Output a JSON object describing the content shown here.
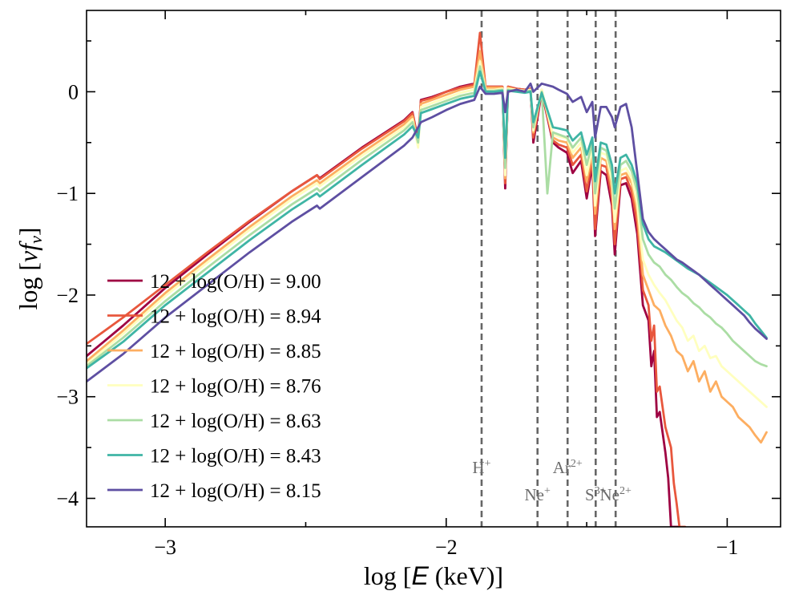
{
  "chart_data": {
    "type": "line",
    "title": "",
    "xlabel_parts": [
      "log [",
      "E",
      " (keV)]"
    ],
    "ylabel_parts": [
      "log [",
      "νf",
      "ν",
      "]"
    ],
    "xlim": [
      -3.28,
      -0.81
    ],
    "ylim": [
      -4.28,
      0.8
    ],
    "xticks": [
      -3,
      -2,
      -1
    ],
    "xtick_labels": [
      "−3",
      "−2",
      "−1"
    ],
    "yticks": [
      0,
      -1,
      -2,
      -3,
      -4
    ],
    "ytick_labels": [
      "0",
      "−1",
      "−2",
      "−3",
      "−4"
    ],
    "legend_position": "lower-left",
    "ion_lines": [
      {
        "name": "H+",
        "base": "H",
        "sup": "+",
        "x": -1.874,
        "label_row": "upper"
      },
      {
        "name": "Ne+",
        "base": "Ne",
        "sup": "+",
        "x": -1.675,
        "label_row": "lower"
      },
      {
        "name": "Ar2+",
        "base": "Ar",
        "sup": "2+",
        "x": -1.568,
        "label_row": "upper"
      },
      {
        "name": "S3+",
        "base": "S",
        "sup": "3+",
        "x": -1.468,
        "label_row": "lower"
      },
      {
        "name": "Ne2+",
        "base": "Ne",
        "sup": "2+",
        "x": -1.397,
        "label_row": "lower"
      }
    ],
    "series": [
      {
        "name": "12 + log(O/H) = 9.00",
        "color": "#9e0142",
        "x": [
          -3.28,
          -3.15,
          -3.0,
          -2.85,
          -2.7,
          -2.55,
          -2.46,
          -2.45,
          -2.3,
          -2.15,
          -2.12,
          -2.1,
          -2.09,
          -2.05,
          -2.0,
          -1.95,
          -1.9,
          -1.88,
          -1.86,
          -1.83,
          -1.8,
          -1.79,
          -1.78,
          -1.75,
          -1.72,
          -1.7,
          -1.69,
          -1.66,
          -1.62,
          -1.6,
          -1.57,
          -1.55,
          -1.52,
          -1.5,
          -1.48,
          -1.47,
          -1.45,
          -1.43,
          -1.41,
          -1.4,
          -1.38,
          -1.36,
          -1.34,
          -1.32,
          -1.3,
          -1.28,
          -1.27,
          -1.26,
          -1.25,
          -1.24,
          -1.22,
          -1.21,
          -1.2,
          -1.19,
          -1.18,
          -1.17
        ],
        "y": [
          -2.6,
          -2.3,
          -1.93,
          -1.6,
          -1.28,
          -0.98,
          -0.82,
          -0.85,
          -0.55,
          -0.28,
          -0.2,
          -0.48,
          -0.08,
          -0.05,
          0.0,
          0.05,
          0.08,
          0.3,
          0.05,
          0.05,
          0.05,
          -0.95,
          0.05,
          0.03,
          0.02,
          0.03,
          -0.5,
          0.0,
          -0.5,
          -0.55,
          -0.6,
          -0.8,
          -0.68,
          -1.05,
          -0.72,
          -1.42,
          -0.78,
          -0.82,
          -1.12,
          -1.6,
          -0.92,
          -0.9,
          -1.05,
          -1.4,
          -2.1,
          -2.25,
          -2.7,
          -2.55,
          -3.2,
          -3.15,
          -3.55,
          -3.8,
          -4.28,
          -4.28,
          -4.28,
          -4.28
        ]
      },
      {
        "name": "12 + log(O/H) = 8.94",
        "color": "#e8573d",
        "x": [
          -3.28,
          -3.15,
          -3.0,
          -2.85,
          -2.7,
          -2.55,
          -2.46,
          -2.45,
          -2.3,
          -2.15,
          -2.12,
          -2.1,
          -2.09,
          -2.05,
          -2.0,
          -1.95,
          -1.9,
          -1.88,
          -1.86,
          -1.83,
          -1.8,
          -1.79,
          -1.78,
          -1.75,
          -1.72,
          -1.7,
          -1.69,
          -1.66,
          -1.62,
          -1.6,
          -1.57,
          -1.55,
          -1.52,
          -1.5,
          -1.48,
          -1.47,
          -1.45,
          -1.43,
          -1.41,
          -1.4,
          -1.38,
          -1.36,
          -1.34,
          -1.32,
          -1.3,
          -1.28,
          -1.27,
          -1.26,
          -1.25,
          -1.24,
          -1.22,
          -1.2,
          -1.19,
          -1.18,
          -1.17,
          -1.16,
          -1.15
        ],
        "y": [
          -2.48,
          -2.22,
          -1.9,
          -1.58,
          -1.27,
          -0.98,
          -0.82,
          -0.86,
          -0.56,
          -0.29,
          -0.21,
          -0.5,
          -0.09,
          -0.06,
          0.0,
          0.04,
          0.07,
          0.58,
          0.05,
          0.05,
          0.05,
          -0.9,
          0.05,
          0.03,
          0.02,
          0.03,
          -0.45,
          0.02,
          -0.48,
          -0.52,
          -0.55,
          -0.72,
          -0.62,
          -0.98,
          -0.66,
          -1.35,
          -0.72,
          -0.74,
          -1.05,
          -1.5,
          -0.86,
          -0.84,
          -0.98,
          -1.3,
          -1.95,
          -2.1,
          -2.45,
          -2.3,
          -2.95,
          -2.9,
          -3.3,
          -3.5,
          -3.85,
          -4.05,
          -4.28,
          -4.28,
          -4.28
        ]
      },
      {
        "name": "12 + log(O/H) = 8.85",
        "color": "#fdae61",
        "x": [
          -3.28,
          -3.15,
          -3.0,
          -2.85,
          -2.7,
          -2.55,
          -2.46,
          -2.45,
          -2.3,
          -2.15,
          -2.12,
          -2.1,
          -2.09,
          -2.05,
          -2.0,
          -1.95,
          -1.9,
          -1.88,
          -1.86,
          -1.83,
          -1.8,
          -1.79,
          -1.78,
          -1.75,
          -1.72,
          -1.7,
          -1.69,
          -1.66,
          -1.62,
          -1.6,
          -1.57,
          -1.55,
          -1.52,
          -1.5,
          -1.48,
          -1.47,
          -1.45,
          -1.43,
          -1.41,
          -1.4,
          -1.38,
          -1.36,
          -1.34,
          -1.32,
          -1.3,
          -1.28,
          -1.26,
          -1.24,
          -1.22,
          -1.2,
          -1.18,
          -1.16,
          -1.14,
          -1.12,
          -1.1,
          -1.08,
          -1.06,
          -1.04,
          -1.02,
          -1.0,
          -0.98,
          -0.96,
          -0.94,
          -0.92,
          -0.9,
          -0.88,
          -0.86
        ],
        "y": [
          -2.65,
          -2.35,
          -1.98,
          -1.65,
          -1.33,
          -1.03,
          -0.87,
          -0.9,
          -0.6,
          -0.32,
          -0.24,
          -0.5,
          -0.12,
          -0.08,
          -0.03,
          0.02,
          0.05,
          0.4,
          0.04,
          0.04,
          0.04,
          -0.85,
          0.04,
          0.02,
          0.01,
          0.02,
          -0.4,
          0.01,
          -0.45,
          -0.48,
          -0.5,
          -0.65,
          -0.55,
          -0.88,
          -0.6,
          -1.2,
          -0.65,
          -0.68,
          -0.95,
          -1.35,
          -0.82,
          -0.8,
          -0.9,
          -1.18,
          -1.8,
          -1.95,
          -2.1,
          -2.15,
          -2.3,
          -2.4,
          -2.55,
          -2.6,
          -2.75,
          -2.65,
          -2.85,
          -2.75,
          -2.95,
          -2.85,
          -3.0,
          -3.05,
          -3.1,
          -3.2,
          -3.25,
          -3.3,
          -3.38,
          -3.45,
          -3.35
        ]
      },
      {
        "name": "12 + log(O/H) = 8.76",
        "color": "#ffffbf",
        "x": [
          -3.28,
          -3.15,
          -3.0,
          -2.85,
          -2.7,
          -2.55,
          -2.46,
          -2.45,
          -2.3,
          -2.15,
          -2.12,
          -2.1,
          -2.09,
          -2.05,
          -2.0,
          -1.95,
          -1.9,
          -1.88,
          -1.86,
          -1.83,
          -1.8,
          -1.79,
          -1.78,
          -1.75,
          -1.72,
          -1.7,
          -1.69,
          -1.66,
          -1.62,
          -1.6,
          -1.57,
          -1.55,
          -1.52,
          -1.5,
          -1.48,
          -1.47,
          -1.45,
          -1.43,
          -1.41,
          -1.4,
          -1.38,
          -1.36,
          -1.34,
          -1.32,
          -1.3,
          -1.28,
          -1.26,
          -1.24,
          -1.22,
          -1.2,
          -1.18,
          -1.16,
          -1.14,
          -1.12,
          -1.1,
          -1.08,
          -1.06,
          -1.04,
          -1.02,
          -1.0,
          -0.98,
          -0.96,
          -0.94,
          -0.92,
          -0.9,
          -0.88,
          -0.86
        ],
        "y": [
          -2.68,
          -2.38,
          -2.01,
          -1.68,
          -1.36,
          -1.06,
          -0.9,
          -0.93,
          -0.63,
          -0.35,
          -0.27,
          -0.55,
          -0.15,
          -0.11,
          -0.06,
          -0.01,
          0.02,
          0.3,
          0.02,
          0.02,
          0.03,
          -0.82,
          0.03,
          0.02,
          0.01,
          0.02,
          -0.38,
          0.02,
          -0.42,
          -0.44,
          -0.46,
          -0.6,
          -0.5,
          -0.82,
          -0.55,
          -1.12,
          -0.6,
          -0.62,
          -0.88,
          -1.28,
          -0.78,
          -0.75,
          -0.85,
          -1.1,
          -1.65,
          -1.8,
          -1.9,
          -1.98,
          -2.05,
          -2.15,
          -2.25,
          -2.32,
          -2.45,
          -2.4,
          -2.55,
          -2.5,
          -2.62,
          -2.6,
          -2.7,
          -2.75,
          -2.8,
          -2.85,
          -2.9,
          -2.95,
          -3.0,
          -3.05,
          -3.1
        ]
      },
      {
        "name": "12 + log(O/H) = 8.63",
        "color": "#abdda4",
        "x": [
          -3.28,
          -3.15,
          -3.0,
          -2.85,
          -2.7,
          -2.55,
          -2.46,
          -2.45,
          -2.3,
          -2.15,
          -2.12,
          -2.1,
          -2.09,
          -2.05,
          -2.0,
          -1.95,
          -1.9,
          -1.88,
          -1.86,
          -1.83,
          -1.8,
          -1.79,
          -1.78,
          -1.75,
          -1.72,
          -1.7,
          -1.69,
          -1.66,
          -1.64,
          -1.62,
          -1.6,
          -1.57,
          -1.55,
          -1.52,
          -1.5,
          -1.48,
          -1.47,
          -1.45,
          -1.43,
          -1.41,
          -1.4,
          -1.38,
          -1.36,
          -1.34,
          -1.32,
          -1.3,
          -1.28,
          -1.26,
          -1.24,
          -1.22,
          -1.2,
          -1.18,
          -1.16,
          -1.14,
          -1.12,
          -1.1,
          -1.08,
          -1.06,
          -1.04,
          -1.02,
          -1.0,
          -0.98,
          -0.96,
          -0.94,
          -0.92,
          -0.9,
          -0.88,
          -0.86
        ],
        "y": [
          -2.7,
          -2.42,
          -2.06,
          -1.73,
          -1.41,
          -1.11,
          -0.95,
          -0.98,
          -0.67,
          -0.38,
          -0.3,
          -0.5,
          -0.18,
          -0.14,
          -0.09,
          -0.04,
          -0.01,
          0.25,
          0.01,
          0.01,
          0.02,
          -0.75,
          0.02,
          0.01,
          0.0,
          0.01,
          -0.35,
          0.0,
          -1.0,
          -0.4,
          -0.42,
          -0.45,
          -0.55,
          -0.45,
          -0.72,
          -0.5,
          -1.0,
          -0.55,
          -0.58,
          -0.8,
          -1.15,
          -0.72,
          -0.68,
          -0.78,
          -0.98,
          -1.45,
          -1.6,
          -1.68,
          -1.72,
          -1.8,
          -1.85,
          -1.92,
          -1.98,
          -2.02,
          -2.08,
          -2.12,
          -2.18,
          -2.22,
          -2.28,
          -2.32,
          -2.38,
          -2.45,
          -2.5,
          -2.55,
          -2.6,
          -2.65,
          -2.68,
          -2.7
        ]
      },
      {
        "name": "12 + log(O/H) = 8.43",
        "color": "#3fb5a5",
        "x": [
          -3.28,
          -3.15,
          -3.0,
          -2.85,
          -2.7,
          -2.55,
          -2.46,
          -2.45,
          -2.3,
          -2.15,
          -2.12,
          -2.1,
          -2.09,
          -2.05,
          -2.0,
          -1.95,
          -1.9,
          -1.88,
          -1.86,
          -1.83,
          -1.8,
          -1.79,
          -1.78,
          -1.75,
          -1.72,
          -1.7,
          -1.69,
          -1.66,
          -1.62,
          -1.6,
          -1.57,
          -1.55,
          -1.52,
          -1.5,
          -1.48,
          -1.47,
          -1.45,
          -1.43,
          -1.41,
          -1.4,
          -1.38,
          -1.36,
          -1.34,
          -1.32,
          -1.3,
          -1.28,
          -1.26,
          -1.24,
          -1.22,
          -1.2,
          -1.18,
          -1.16,
          -1.14,
          -1.12,
          -1.1,
          -1.08,
          -1.06,
          -1.04,
          -1.02,
          -1.0,
          -0.98,
          -0.96,
          -0.94,
          -0.92,
          -0.9,
          -0.88,
          -0.86
        ],
        "y": [
          -2.72,
          -2.46,
          -2.1,
          -1.78,
          -1.46,
          -1.16,
          -1.0,
          -1.03,
          -0.72,
          -0.42,
          -0.34,
          -0.45,
          -0.21,
          -0.17,
          -0.12,
          -0.07,
          -0.04,
          0.2,
          0.0,
          0.0,
          0.01,
          -0.65,
          0.01,
          0.0,
          -0.01,
          0.0,
          -0.3,
          -0.01,
          -0.35,
          -0.36,
          -0.38,
          -0.48,
          -0.4,
          -0.62,
          -0.45,
          -0.88,
          -0.5,
          -0.52,
          -0.72,
          -1.0,
          -0.65,
          -0.62,
          -0.72,
          -0.9,
          -1.3,
          -1.45,
          -1.52,
          -1.55,
          -1.58,
          -1.62,
          -1.66,
          -1.7,
          -1.74,
          -1.77,
          -1.8,
          -1.84,
          -1.88,
          -1.92,
          -1.96,
          -2.0,
          -2.05,
          -2.1,
          -2.15,
          -2.2,
          -2.28,
          -2.35,
          -2.42
        ]
      },
      {
        "name": "12 + log(O/H) = 8.15",
        "color": "#5e4fa2",
        "x": [
          -3.28,
          -3.15,
          -3.0,
          -2.85,
          -2.7,
          -2.55,
          -2.46,
          -2.45,
          -2.3,
          -2.15,
          -2.12,
          -2.1,
          -2.09,
          -2.05,
          -2.0,
          -1.95,
          -1.9,
          -1.88,
          -1.86,
          -1.83,
          -1.8,
          -1.79,
          -1.78,
          -1.75,
          -1.72,
          -1.7,
          -1.69,
          -1.66,
          -1.62,
          -1.6,
          -1.57,
          -1.55,
          -1.52,
          -1.5,
          -1.48,
          -1.47,
          -1.45,
          -1.43,
          -1.41,
          -1.4,
          -1.38,
          -1.36,
          -1.34,
          -1.32,
          -1.3,
          -1.28,
          -1.26,
          -1.24,
          -1.22,
          -1.2,
          -1.18,
          -1.16,
          -1.14,
          -1.12,
          -1.1,
          -1.08,
          -1.06,
          -1.04,
          -1.02,
          -1.0,
          -0.98,
          -0.96,
          -0.94,
          -0.92,
          -0.9,
          -0.88,
          -0.86
        ],
        "y": [
          -2.85,
          -2.58,
          -2.22,
          -1.9,
          -1.58,
          -1.28,
          -1.12,
          -1.15,
          -0.84,
          -0.53,
          -0.45,
          -0.35,
          -0.3,
          -0.25,
          -0.18,
          -0.12,
          -0.08,
          0.05,
          -0.02,
          -0.02,
          -0.01,
          -0.2,
          0.0,
          0.02,
          0.0,
          0.08,
          0.0,
          0.08,
          0.05,
          0.02,
          -0.02,
          -0.1,
          -0.05,
          -0.2,
          -0.1,
          -0.45,
          -0.15,
          -0.15,
          -0.25,
          -0.35,
          -0.15,
          -0.12,
          -0.35,
          -0.8,
          -1.25,
          -1.38,
          -1.45,
          -1.5,
          -1.55,
          -1.6,
          -1.65,
          -1.68,
          -1.72,
          -1.76,
          -1.8,
          -1.85,
          -1.9,
          -1.95,
          -2.0,
          -2.05,
          -2.1,
          -2.15,
          -2.2,
          -2.27,
          -2.33,
          -2.38,
          -2.43
        ]
      }
    ]
  }
}
